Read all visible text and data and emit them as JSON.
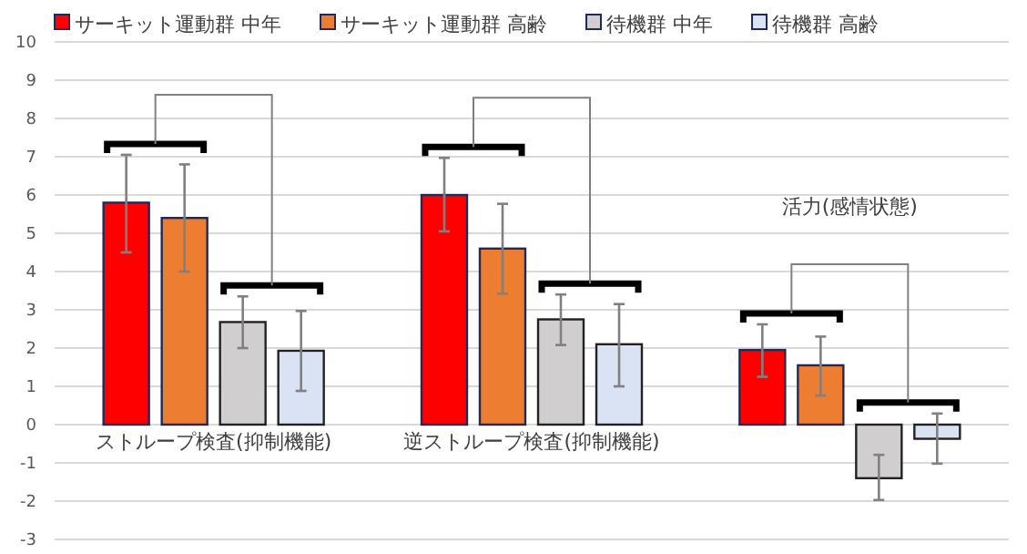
{
  "chart_data": {
    "type": "bar",
    "categories": [
      "ストループ検査(抑制機能)",
      "逆ストループ検査(抑制機能)",
      "活力(感情状態)"
    ],
    "series": [
      {
        "name": "サーキット運動群 中年",
        "color": "#ff0000",
        "values": [
          5.8,
          6.0,
          1.95
        ],
        "errors": [
          [
            4.5,
            7.05
          ],
          [
            5.05,
            6.97
          ],
          [
            1.25,
            2.62
          ]
        ]
      },
      {
        "name": "サーキット運動群 高齢",
        "color": "#ed7d31",
        "values": [
          5.4,
          4.6,
          1.55
        ],
        "errors": [
          [
            4.0,
            6.8
          ],
          [
            3.42,
            5.77
          ],
          [
            0.76,
            2.3
          ]
        ]
      },
      {
        "name": "待機群 中年",
        "color": "#d0cece",
        "values": [
          2.68,
          2.75,
          -1.4
        ],
        "errors": [
          [
            2.0,
            3.35
          ],
          [
            2.08,
            3.4
          ],
          [
            -1.97,
            -0.79
          ]
        ]
      },
      {
        "name": "待機群 高齢",
        "color": "#dae3f3",
        "values": [
          1.93,
          2.1,
          -0.37
        ],
        "errors": [
          [
            0.88,
            2.97
          ],
          [
            1.0,
            3.15
          ],
          [
            -1.02,
            0.29
          ]
        ]
      }
    ],
    "ylim": [
      -3,
      10
    ],
    "yticks": [
      -3,
      -2,
      -1,
      0,
      1,
      2,
      3,
      4,
      5,
      6,
      7,
      8,
      9,
      10
    ],
    "grid": "y",
    "legend": "top"
  }
}
